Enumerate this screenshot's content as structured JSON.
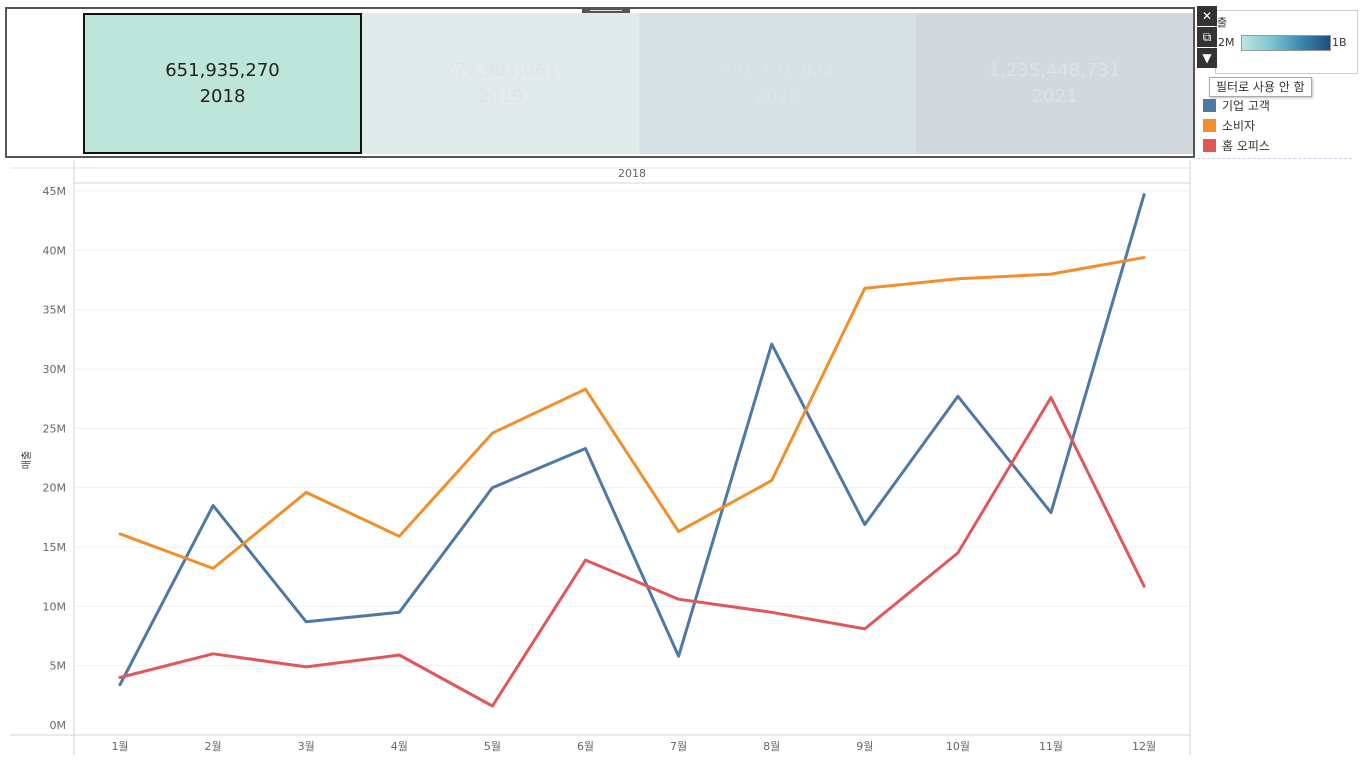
{
  "year_panel": {
    "cells": [
      {
        "value": "651,935,270",
        "year": "2018",
        "selected": true,
        "color": "#bde5d9"
      },
      {
        "value": "777,981,061",
        "year": "2019",
        "selected": false,
        "color": "#e1ebea"
      },
      {
        "value": "991,771,824",
        "year": "2020",
        "selected": false,
        "color": "#d5e1e5"
      },
      {
        "value": "1,235,448,731",
        "year": "2021",
        "selected": false,
        "color": "#d1d8de"
      }
    ]
  },
  "toolbar": {
    "close_icon": "✕",
    "popout_icon": "⧉",
    "filter_icon": "▼",
    "tooltip": "필터로 사용 안 함"
  },
  "color_legend": {
    "title": "출",
    "min_label": "2M",
    "max_label": "1B",
    "colors": [
      "#bfe6df",
      "#1e4d7e"
    ]
  },
  "chart_data": {
    "type": "line",
    "panel_header": "2018",
    "ylabel": "매출",
    "categories": [
      "1월",
      "2월",
      "3월",
      "4월",
      "5월",
      "6월",
      "7월",
      "8월",
      "9월",
      "10월",
      "11월",
      "12월"
    ],
    "ylim": [
      0,
      47000000
    ],
    "yticks": [
      0,
      5000000,
      10000000,
      15000000,
      20000000,
      25000000,
      30000000,
      35000000,
      40000000,
      45000000
    ],
    "ytick_labels": [
      "0M",
      "5M",
      "10M",
      "15M",
      "20M",
      "25M",
      "30M",
      "35M",
      "40M",
      "45M"
    ],
    "grid": true,
    "legend_position": "right",
    "series": [
      {
        "name": "기업 고객",
        "color": "#4e79a7",
        "values": [
          3400000,
          18500000,
          8700000,
          9500000,
          20000000,
          23300000,
          5800000,
          32100000,
          16900000,
          27700000,
          17900000,
          44700000
        ]
      },
      {
        "name": "소비자",
        "color": "#f28e2b",
        "values": [
          16100000,
          13200000,
          19600000,
          15900000,
          24600000,
          28300000,
          16300000,
          20600000,
          36800000,
          37600000,
          38000000,
          39400000
        ]
      },
      {
        "name": "홈 오피스",
        "color": "#e15759",
        "values": [
          4000000,
          6000000,
          4900000,
          5900000,
          1600000,
          13900000,
          10600000,
          9500000,
          8100000,
          14500000,
          27600000,
          11700000
        ]
      }
    ]
  }
}
